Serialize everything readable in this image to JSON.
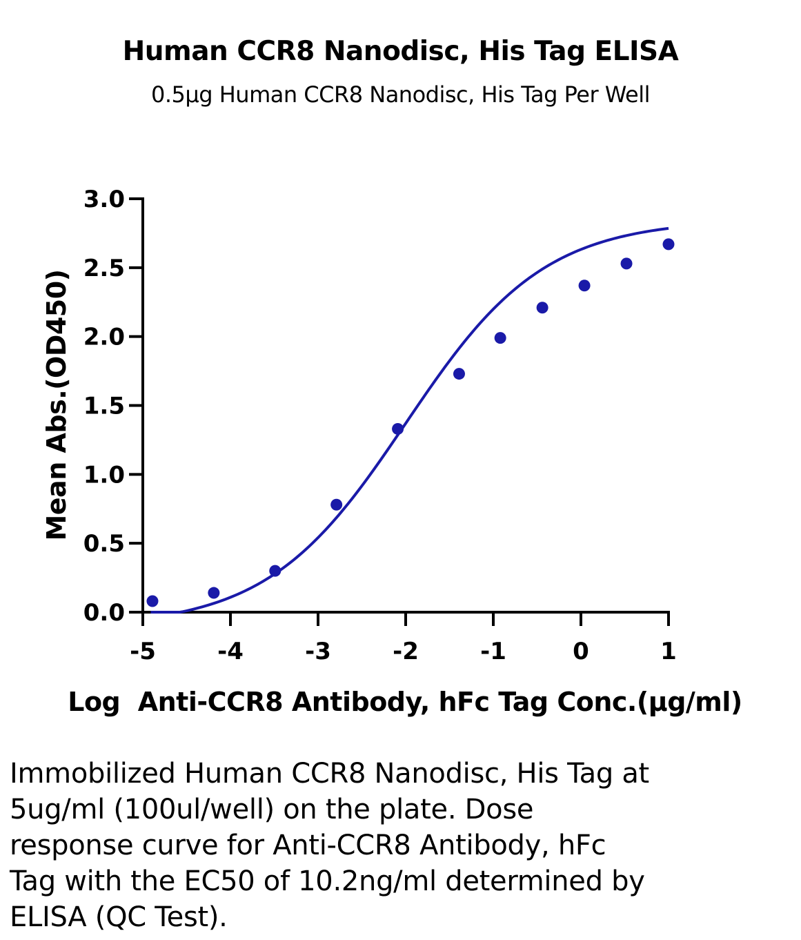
{
  "chart_data": {
    "type": "scatter",
    "title": "Human CCR8 Nanodisc, His Tag ELISA",
    "subtitle": "0.5µg Human CCR8 Nanodisc, His Tag Per Well",
    "xlabel": "Log  Anti-CCR8 Antibody, hFc Tag Conc.(µg/ml)",
    "ylabel": "Mean Abs.(OD450)",
    "xlim": [
      -5,
      1
    ],
    "ylim": [
      0,
      3
    ],
    "x_ticks": [
      "-5",
      "-4",
      "-3",
      "-2",
      "-1",
      "0",
      "1"
    ],
    "y_ticks": [
      "0.0",
      "0.5",
      "1.0",
      "1.5",
      "2.0",
      "2.5",
      "3.0"
    ],
    "grid": false,
    "color": "#1a1aa8",
    "series": [
      {
        "x": [
          -4.89,
          -4.19,
          -3.49,
          -2.79,
          -2.09,
          -1.39,
          -0.92,
          -0.44,
          0.04,
          0.52,
          1.0
        ],
        "y": [
          0.08,
          0.14,
          0.3,
          0.78,
          1.33,
          1.73,
          1.99,
          2.21,
          2.37,
          2.53,
          2.67
        ]
      }
    ],
    "fit_curve": {
      "type": "4PL",
      "bottom": -0.11,
      "top": 2.85,
      "log_ec50": -2.0,
      "hill": 0.55
    }
  },
  "caption": "Immobilized Human CCR8 Nanodisc, His Tag at 5ug/ml (100ul/well) on the plate. Dose response curve for Anti-CCR8 Antibody, hFc Tag with the EC50 of 10.2ng/ml determined by ELISA (QC Test)."
}
